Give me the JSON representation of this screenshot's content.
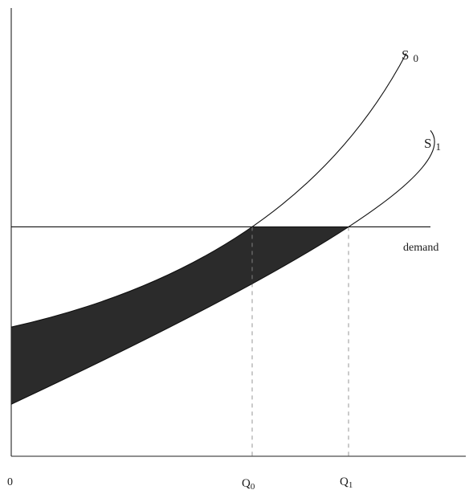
{
  "chart_data": {
    "type": "line",
    "title": "",
    "xlabel": "",
    "ylabel": "",
    "origin_label": "0",
    "x_ticks": [
      {
        "base": "Q",
        "sub": "0",
        "x": 50
      },
      {
        "base": "Q",
        "sub": "1",
        "x": 70
      }
    ],
    "xlim": [
      0,
      95
    ],
    "ylim": [
      0,
      100
    ],
    "grid": false,
    "legend": "none",
    "series": [
      {
        "name": "S",
        "sub": "0",
        "x": [
          0,
          50,
          82
        ],
        "y": [
          26,
          52,
          97
        ]
      },
      {
        "name": "S",
        "sub": "1",
        "x": [
          0,
          70,
          87
        ],
        "y": [
          6,
          52,
          77
        ]
      },
      {
        "name": "demand",
        "x": [
          0,
          87
        ],
        "y": [
          52,
          52
        ]
      }
    ],
    "shaded_region": {
      "between": [
        "S0",
        "S1"
      ],
      "below": "demand",
      "color": "#2b2b2b"
    },
    "colors": {
      "axis": "#222222",
      "curve": "#111111",
      "fill": "#2b2b2b",
      "guide": "#8a8a8a"
    }
  }
}
